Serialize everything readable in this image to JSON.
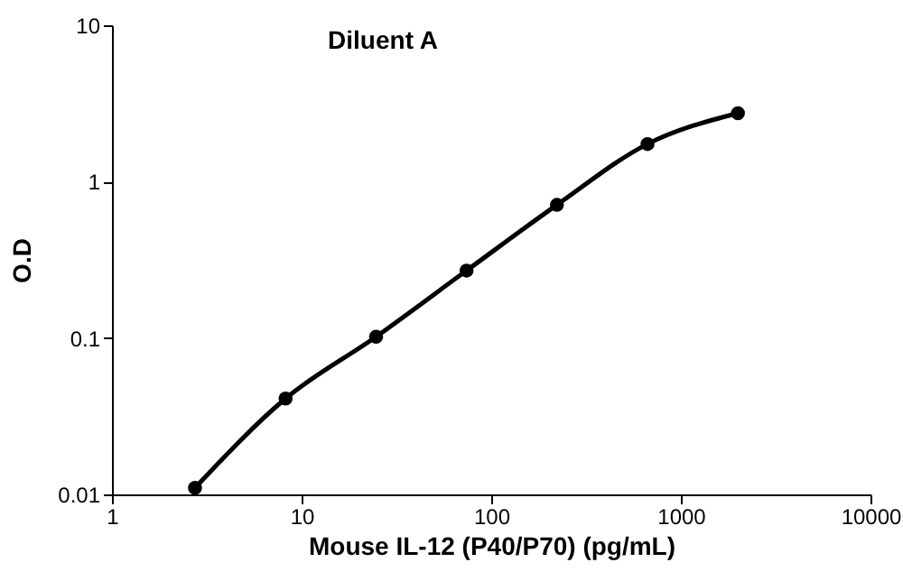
{
  "chart_data": {
    "type": "line",
    "title": "Diluent A",
    "xlabel": "Mouse IL-12 (P40/P70) (pg/mL)",
    "ylabel": "O.D",
    "x": [
      2.74,
      8.23,
      24.7,
      74.1,
      222,
      667,
      2000
    ],
    "series": [
      {
        "color": "#000000",
        "values": [
          0.011,
          0.041,
          0.102,
          0.27,
          0.71,
          1.74,
          2.74
        ]
      }
    ],
    "xlim": [
      1,
      10000
    ],
    "xticks": [
      1,
      10,
      100,
      1000,
      10000
    ],
    "ylim": [
      0.01,
      10
    ],
    "yticks": [
      0.01,
      0.1,
      1,
      10
    ],
    "log": "xy",
    "grid": false,
    "legend": false,
    "marker": "circle",
    "line_style": "solid"
  }
}
